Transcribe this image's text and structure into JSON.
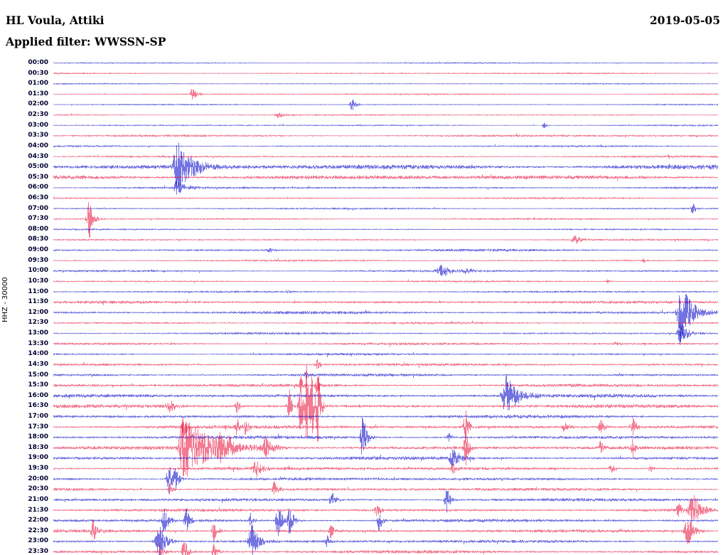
{
  "header": {
    "station_title": "HL Voula, Attiki",
    "date": "2019-05-05",
    "filter_label": "Applied filter: WWSSN-SP",
    "channel_scale_label": "HHZ - 30000"
  },
  "chart_data": {
    "type": "line",
    "subtype": "helicorder-dayplot",
    "title": "HL Voula, Attiki",
    "date": "2019-05-05",
    "filter": "WWSSN-SP",
    "channel": "HHZ",
    "amplitude_scale": 30000,
    "minutes_per_row": 30,
    "rows": 48,
    "grid": false,
    "legend": "none",
    "trace_colors": {
      "even": "#0000c8",
      "odd": "#e8103a"
    },
    "label_color": "#000030",
    "noise_amp": 1.0,
    "row_labels": [
      "00:00",
      "00:30",
      "01:00",
      "01:30",
      "02:00",
      "02:30",
      "03:00",
      "03:30",
      "04:00",
      "04:30",
      "05:00",
      "05:30",
      "06:00",
      "06:30",
      "07:00",
      "07:30",
      "08:00",
      "08:30",
      "09:00",
      "09:30",
      "10:00",
      "10:30",
      "11:00",
      "11:30",
      "12:00",
      "12:30",
      "13:00",
      "13:30",
      "14:00",
      "14:30",
      "15:00",
      "15:30",
      "16:00",
      "16:30",
      "17:00",
      "17:30",
      "18:00",
      "18:30",
      "19:00",
      "19:30",
      "20:00",
      "20:30",
      "21:00",
      "21:30",
      "22:00",
      "22:30",
      "23:00",
      "23:30"
    ],
    "noise_mult": [
      0.8,
      0.9,
      0.8,
      0.9,
      0.8,
      0.9,
      0.9,
      1.2,
      1.0,
      1.1,
      2.4,
      2.2,
      1.2,
      1.0,
      1.0,
      1.0,
      0.9,
      1.0,
      1.3,
      1.0,
      1.2,
      1.0,
      1.1,
      1.5,
      1.5,
      1.2,
      1.2,
      1.3,
      1.2,
      1.4,
      1.4,
      1.6,
      1.8,
      1.8,
      1.7,
      1.8,
      1.7,
      1.8,
      1.7,
      1.7,
      1.6,
      1.6,
      1.6,
      1.6,
      1.6,
      1.6,
      1.6,
      1.6
    ],
    "events": [
      {
        "row": 3,
        "x": 0.209,
        "amp": 10,
        "attack": 2,
        "decay": 6
      },
      {
        "row": 4,
        "x": 0.449,
        "amp": 9,
        "attack": 2,
        "decay": 5
      },
      {
        "row": 5,
        "x": 0.339,
        "amp": 4,
        "attack": 4,
        "decay": 8
      },
      {
        "row": 6,
        "x": 0.738,
        "amp": 4,
        "attack": 2,
        "decay": 4
      },
      {
        "row": 9,
        "x": 0.925,
        "amp": 3,
        "attack": 2,
        "decay": 4
      },
      {
        "row": 10,
        "x": 0.185,
        "amp": 34,
        "attack": 3,
        "decay": 22
      },
      {
        "row": 12,
        "x": 0.185,
        "amp": 10,
        "attack": 3,
        "decay": 14
      },
      {
        "row": 14,
        "x": 0.962,
        "amp": 7,
        "attack": 2,
        "decay": 4
      },
      {
        "row": 15,
        "x": 0.054,
        "amp": 30,
        "attack": 2.5,
        "decay": 5
      },
      {
        "row": 17,
        "x": 0.786,
        "amp": 6,
        "attack": 4,
        "decay": 10
      },
      {
        "row": 18,
        "x": 0.326,
        "amp": 3,
        "attack": 3,
        "decay": 6
      },
      {
        "row": 19,
        "x": 0.888,
        "amp": 3,
        "attack": 2,
        "decay": 5
      },
      {
        "row": 20,
        "x": 0.585,
        "amp": 7,
        "attack": 5,
        "decay": 14
      },
      {
        "row": 20,
        "x": 0.623,
        "amp": 4,
        "attack": 3,
        "decay": 8
      },
      {
        "row": 21,
        "x": 0.834,
        "amp": 3,
        "attack": 2,
        "decay": 4
      },
      {
        "row": 22,
        "x": 0.353,
        "amp": 3,
        "attack": 2,
        "decay": 4
      },
      {
        "row": 24,
        "x": 0.943,
        "amp": 38,
        "attack": 3,
        "decay": 16
      },
      {
        "row": 26,
        "x": 0.943,
        "amp": 15,
        "attack": 3,
        "decay": 10
      },
      {
        "row": 27,
        "x": 0.845,
        "amp": 4,
        "attack": 2,
        "decay": 5
      },
      {
        "row": 29,
        "x": 0.397,
        "amp": 7,
        "attack": 2,
        "decay": 4
      },
      {
        "row": 30,
        "x": 0.38,
        "amp": 6,
        "attack": 2,
        "decay": 4
      },
      {
        "row": 31,
        "x": 0.372,
        "amp": 10,
        "attack": 2,
        "decay": 4
      },
      {
        "row": 31,
        "x": 0.397,
        "amp": 12,
        "attack": 2,
        "decay": 4
      },
      {
        "row": 32,
        "x": 0.681,
        "amp": 26,
        "attack": 4,
        "decay": 16
      },
      {
        "row": 33,
        "x": 0.176,
        "amp": 8,
        "attack": 5,
        "decay": 8
      },
      {
        "row": 33,
        "x": 0.276,
        "amp": 9,
        "attack": 2,
        "decay": 4
      },
      {
        "row": 33,
        "x": 0.355,
        "amp": 22,
        "attack": 2,
        "decay": 3
      },
      {
        "row": 33,
        "x": 0.372,
        "amp": 48,
        "attack": 2,
        "decay": 3
      },
      {
        "row": 33,
        "x": 0.381,
        "amp": 52,
        "attack": 2,
        "decay": 3
      },
      {
        "row": 33,
        "x": 0.389,
        "amp": 46,
        "attack": 2,
        "decay": 3
      },
      {
        "row": 33,
        "x": 0.398,
        "amp": 55,
        "attack": 2,
        "decay": 3
      },
      {
        "row": 35,
        "x": 0.196,
        "amp": 18,
        "attack": 2,
        "decay": 4
      },
      {
        "row": 35,
        "x": 0.276,
        "amp": 14,
        "attack": 2,
        "decay": 4
      },
      {
        "row": 35,
        "x": 0.289,
        "amp": 9,
        "attack": 2,
        "decay": 4
      },
      {
        "row": 35,
        "x": 0.62,
        "amp": 24,
        "attack": 2,
        "decay": 4
      },
      {
        "row": 35,
        "x": 0.77,
        "amp": 7,
        "attack": 3,
        "decay": 6
      },
      {
        "row": 35,
        "x": 0.823,
        "amp": 12,
        "attack": 2,
        "decay": 5
      },
      {
        "row": 35,
        "x": 0.872,
        "amp": 12,
        "attack": 2,
        "decay": 5
      },
      {
        "row": 36,
        "x": 0.465,
        "amp": 32,
        "attack": 2,
        "decay": 5
      },
      {
        "row": 36,
        "x": 0.594,
        "amp": 6,
        "attack": 2,
        "decay": 5
      },
      {
        "row": 37,
        "x": 0.195,
        "amp": 42,
        "attack": 4,
        "decay": 40
      },
      {
        "row": 37,
        "x": 0.251,
        "amp": 12,
        "attack": 2,
        "decay": 3
      },
      {
        "row": 37,
        "x": 0.264,
        "amp": 10,
        "attack": 2,
        "decay": 3
      },
      {
        "row": 37,
        "x": 0.321,
        "amp": 14,
        "attack": 4,
        "decay": 7
      },
      {
        "row": 37,
        "x": 0.62,
        "amp": 26,
        "attack": 2,
        "decay": 4
      },
      {
        "row": 37,
        "x": 0.823,
        "amp": 10,
        "attack": 2,
        "decay": 4
      },
      {
        "row": 37,
        "x": 0.872,
        "amp": 12,
        "attack": 2,
        "decay": 4
      },
      {
        "row": 38,
        "x": 0.601,
        "amp": 16,
        "attack": 3,
        "decay": 8
      },
      {
        "row": 39,
        "x": 0.305,
        "amp": 10,
        "attack": 4,
        "decay": 8
      },
      {
        "row": 39,
        "x": 0.601,
        "amp": 8,
        "attack": 2,
        "decay": 5
      },
      {
        "row": 39,
        "x": 0.839,
        "amp": 8,
        "attack": 2,
        "decay": 5
      },
      {
        "row": 39,
        "x": 0.898,
        "amp": 5,
        "attack": 2,
        "decay": 4
      },
      {
        "row": 40,
        "x": 0.173,
        "amp": 22,
        "attack": 2,
        "decay": 5
      },
      {
        "row": 40,
        "x": 0.184,
        "amp": 14,
        "attack": 2,
        "decay": 4
      },
      {
        "row": 41,
        "x": 0.175,
        "amp": 8,
        "attack": 2,
        "decay": 4
      },
      {
        "row": 41,
        "x": 0.332,
        "amp": 12,
        "attack": 2,
        "decay": 5
      },
      {
        "row": 42,
        "x": 0.419,
        "amp": 12,
        "attack": 2,
        "decay": 5
      },
      {
        "row": 42,
        "x": 0.591,
        "amp": 18,
        "attack": 2,
        "decay": 5
      },
      {
        "row": 43,
        "x": 0.487,
        "amp": 12,
        "attack": 2,
        "decay": 4
      },
      {
        "row": 43,
        "x": 0.94,
        "amp": 10,
        "attack": 2,
        "decay": 4
      },
      {
        "row": 43,
        "x": 0.962,
        "amp": 24,
        "attack": 4,
        "decay": 10
      },
      {
        "row": 44,
        "x": 0.166,
        "amp": 20,
        "attack": 2,
        "decay": 5
      },
      {
        "row": 44,
        "x": 0.2,
        "amp": 18,
        "attack": 2,
        "decay": 5
      },
      {
        "row": 44,
        "x": 0.296,
        "amp": 10,
        "attack": 2,
        "decay": 4
      },
      {
        "row": 44,
        "x": 0.337,
        "amp": 28,
        "attack": 2,
        "decay": 5
      },
      {
        "row": 44,
        "x": 0.355,
        "amp": 22,
        "attack": 2,
        "decay": 5
      },
      {
        "row": 44,
        "x": 0.49,
        "amp": 14,
        "attack": 2,
        "decay": 4
      },
      {
        "row": 45,
        "x": 0.059,
        "amp": 18,
        "attack": 2,
        "decay": 5
      },
      {
        "row": 45,
        "x": 0.241,
        "amp": 14,
        "attack": 2,
        "decay": 5
      },
      {
        "row": 45,
        "x": 0.417,
        "amp": 10,
        "attack": 2,
        "decay": 4
      },
      {
        "row": 45,
        "x": 0.955,
        "amp": 18,
        "attack": 4,
        "decay": 8
      },
      {
        "row": 46,
        "x": 0.16,
        "amp": 22,
        "attack": 4,
        "decay": 8
      },
      {
        "row": 46,
        "x": 0.299,
        "amp": 24,
        "attack": 4,
        "decay": 8
      },
      {
        "row": 46,
        "x": 0.412,
        "amp": 8,
        "attack": 2,
        "decay": 4
      },
      {
        "row": 47,
        "x": 0.16,
        "amp": 12,
        "attack": 2,
        "decay": 5
      },
      {
        "row": 47,
        "x": 0.196,
        "amp": 18,
        "attack": 2,
        "decay": 6
      },
      {
        "row": 47,
        "x": 0.241,
        "amp": 12,
        "attack": 2,
        "decay": 5
      }
    ]
  }
}
